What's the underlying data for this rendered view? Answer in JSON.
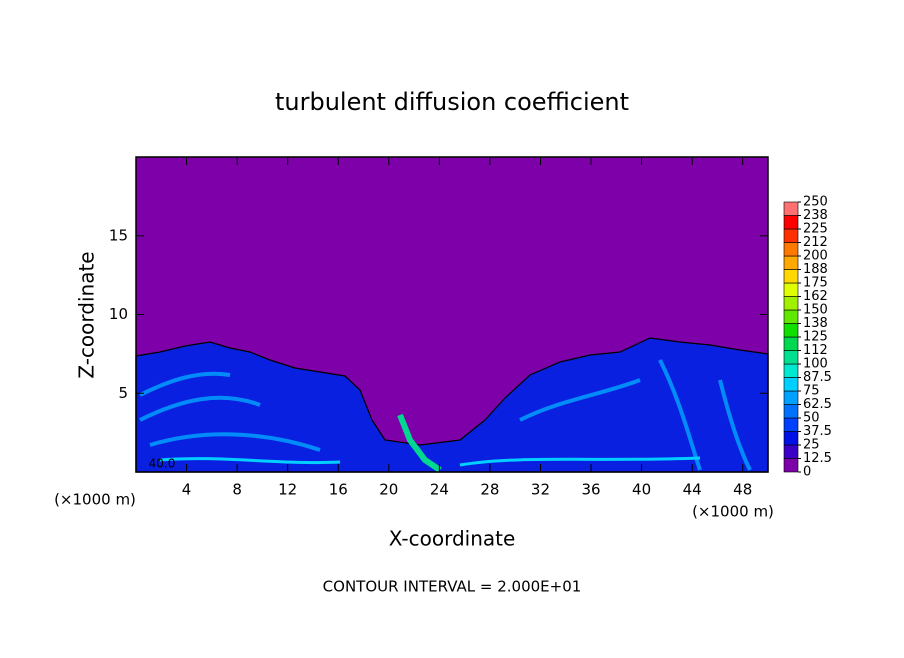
{
  "chart_data": {
    "type": "contour",
    "title": "turbulent diffusion coefficient",
    "x_label": "X-coordinate",
    "y_label": "Z-coordinate",
    "x_unit": "(×1000 m)",
    "x_unit_right": "(×1000 m)",
    "footer": "CONTOUR INTERVAL = 2.000E+01",
    "annotation": "40.0",
    "xlim": [
      0,
      50
    ],
    "ylim": [
      0,
      20
    ],
    "xticks": [
      4,
      8,
      12,
      16,
      20,
      24,
      28,
      32,
      36,
      40,
      44,
      48
    ],
    "yticks": [
      5,
      10,
      15
    ],
    "colorbar": {
      "ticks": [
        0,
        12.5,
        25,
        37.5,
        50,
        62.5,
        75,
        87.5,
        100,
        {
          "value": 112.5,
          "label": "112"
        },
        125,
        {
          "value": 137.5,
          "label": "138"
        },
        150,
        {
          "value": 162.5,
          "label": "162"
        },
        175,
        {
          "value": 187.5,
          "label": "188"
        },
        200,
        {
          "value": 212.5,
          "label": "212"
        },
        225,
        {
          "value": 237.5,
          "label": "238"
        },
        250
      ],
      "colors": [
        "#7d00a8",
        "#3a00c8",
        "#0010e6",
        "#0040ff",
        "#0070ff",
        "#00a0ff",
        "#00d0ff",
        "#00e8d0",
        "#00e090",
        "#00d850",
        "#10e000",
        "#60e800",
        "#a0f000",
        "#e0ff00",
        "#ffd800",
        "#ffa800",
        "#ff7800",
        "#ff3000",
        "#ff0000",
        "#ff7070"
      ]
    }
  }
}
